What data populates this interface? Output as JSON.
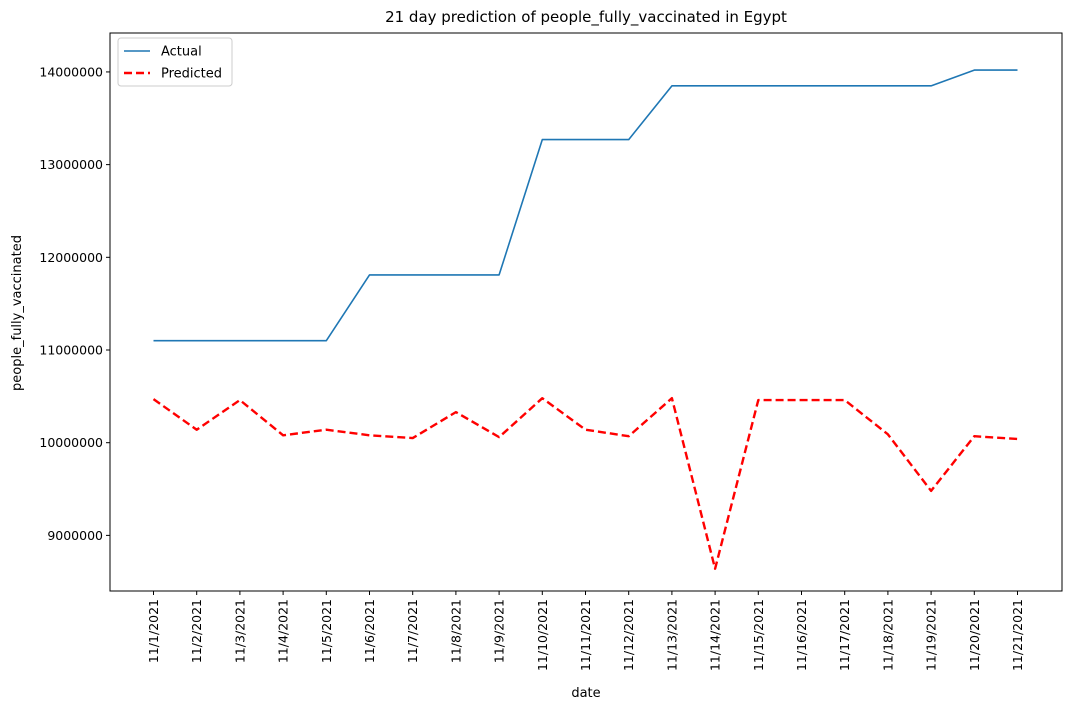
{
  "chart_data": {
    "type": "line",
    "title": "21 day prediction of people_fully_vaccinated in Egypt",
    "xlabel": "date",
    "ylabel": "people_fully_vaccinated",
    "x": [
      "11/1/2021",
      "11/2/2021",
      "11/3/2021",
      "11/4/2021",
      "11/5/2021",
      "11/6/2021",
      "11/7/2021",
      "11/8/2021",
      "11/9/2021",
      "11/10/2021",
      "11/11/2021",
      "11/12/2021",
      "11/13/2021",
      "11/14/2021",
      "11/15/2021",
      "11/16/2021",
      "11/17/2021",
      "11/18/2021",
      "11/19/2021",
      "11/20/2021",
      "11/21/2021"
    ],
    "yticks": [
      9000000,
      10000000,
      11000000,
      12000000,
      13000000,
      14000000
    ],
    "ytick_labels": [
      "9000000",
      "10000000",
      "11000000",
      "12000000",
      "13000000",
      "14000000"
    ],
    "ylim": [
      8400000,
      14420000
    ],
    "grid": false,
    "legend_position": "top-left",
    "series": [
      {
        "name": "Actual",
        "color": "#1f77b4",
        "style": "solid",
        "values": [
          11100000,
          11100000,
          11100000,
          11100000,
          11100000,
          11810000,
          11810000,
          11810000,
          11810000,
          13270000,
          13270000,
          13270000,
          13850000,
          13850000,
          13850000,
          13850000,
          13850000,
          13850000,
          13850000,
          14020000,
          14020000
        ]
      },
      {
        "name": "Predicted",
        "color": "#ff0000",
        "style": "dashed",
        "values": [
          10470000,
          10140000,
          10460000,
          10080000,
          10140000,
          10080000,
          10050000,
          10330000,
          10060000,
          10480000,
          10140000,
          10070000,
          10480000,
          8640000,
          10460000,
          10460000,
          10460000,
          10090000,
          9480000,
          10070000,
          10040000
        ]
      }
    ]
  }
}
